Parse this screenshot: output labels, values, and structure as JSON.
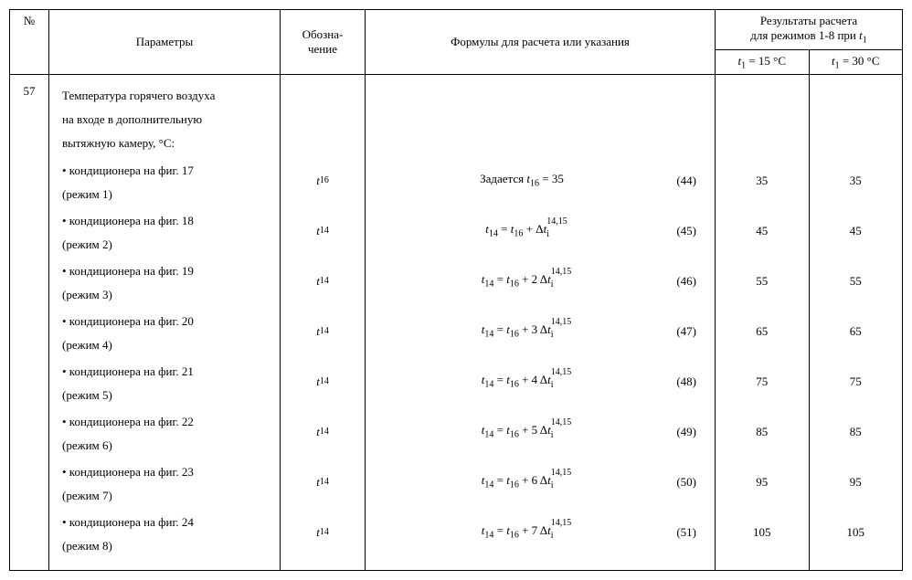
{
  "header": {
    "num": "№",
    "params": "Параметры",
    "desig_line1": "Обозна-",
    "desig_line2": "чение",
    "formula": "Формулы для расчета или указания",
    "results_line1": "Результаты расчета",
    "results_line2": "для режимов 1-8 при ",
    "results_var": "t",
    "results_sub": "1",
    "col15_var": "t",
    "col15_sub": "1",
    "col15_rest": " = 15 °С",
    "col30_var": "t",
    "col30_sub": "1",
    "col30_rest": " = 30 °С"
  },
  "row": {
    "num": "57",
    "intro_l1": "Температура горячего воздуха",
    "intro_l2": "на входе в дополнительную",
    "intro_l3": "вытяжную камеру, °С:",
    "items": [
      {
        "label_l1": "• кондиционера на фиг. 17",
        "label_l2": "(режим 1)",
        "desig": "t16",
        "formula_prefix": "Задается ",
        "formula_var": "t",
        "formula_sub": "16",
        "formula_rest": " = 35",
        "coef": "",
        "eqnum": "(44)",
        "r15": "35",
        "r30": "35"
      },
      {
        "label_l1": "• кондиционера на фиг. 18",
        "label_l2": "(режим 2)",
        "desig": "t14",
        "formula_prefix": "",
        "formula_var": "t",
        "formula_sub": "14",
        "formula_rest": "",
        "coef": "",
        "eqnum": "(45)",
        "r15": "45",
        "r30": "45"
      },
      {
        "label_l1": "• кондиционера на фиг. 19",
        "label_l2": "(режим 3)",
        "desig": "t14",
        "formula_prefix": "",
        "formula_var": "t",
        "formula_sub": "14",
        "formula_rest": "",
        "coef": "2",
        "eqnum": "(46)",
        "r15": "55",
        "r30": "55"
      },
      {
        "label_l1": "• кондиционера на фиг. 20",
        "label_l2": "(режим 4)",
        "desig": "t14",
        "formula_prefix": "",
        "formula_var": "t",
        "formula_sub": "14",
        "formula_rest": "",
        "coef": "3",
        "eqnum": "(47)",
        "r15": "65",
        "r30": "65"
      },
      {
        "label_l1": "• кондиционера на фиг. 21",
        "label_l2": "(режим 5)",
        "desig": "t14",
        "formula_prefix": "",
        "formula_var": "t",
        "formula_sub": "14",
        "formula_rest": "",
        "coef": "4",
        "eqnum": "(48)",
        "r15": "75",
        "r30": "75"
      },
      {
        "label_l1": "• кондиционера на фиг. 22",
        "label_l2": "(режим 6)",
        "desig": "t14",
        "formula_prefix": "",
        "formula_var": "t",
        "formula_sub": "14",
        "formula_rest": "",
        "coef": "5",
        "eqnum": "(49)",
        "r15": "85",
        "r30": "85"
      },
      {
        "label_l1": "• кондиционера на фиг. 23",
        "label_l2": "(режим 7)",
        "desig": "t14",
        "formula_prefix": "",
        "formula_var": "t",
        "formula_sub": "14",
        "formula_rest": "",
        "coef": "6",
        "eqnum": "(50)",
        "r15": "95",
        "r30": "95"
      },
      {
        "label_l1": "• кондиционера на фиг. 24",
        "label_l2": "(режим 8)",
        "desig": "t14",
        "formula_prefix": "",
        "formula_var": "t",
        "formula_sub": "14",
        "formula_rest": "",
        "coef": "7",
        "eqnum": "(51)",
        "r15": "105",
        "r30": "105"
      }
    ]
  },
  "delta": {
    "sym": "Δ",
    "var": "t",
    "sub": "i",
    "sup": "14,15"
  }
}
